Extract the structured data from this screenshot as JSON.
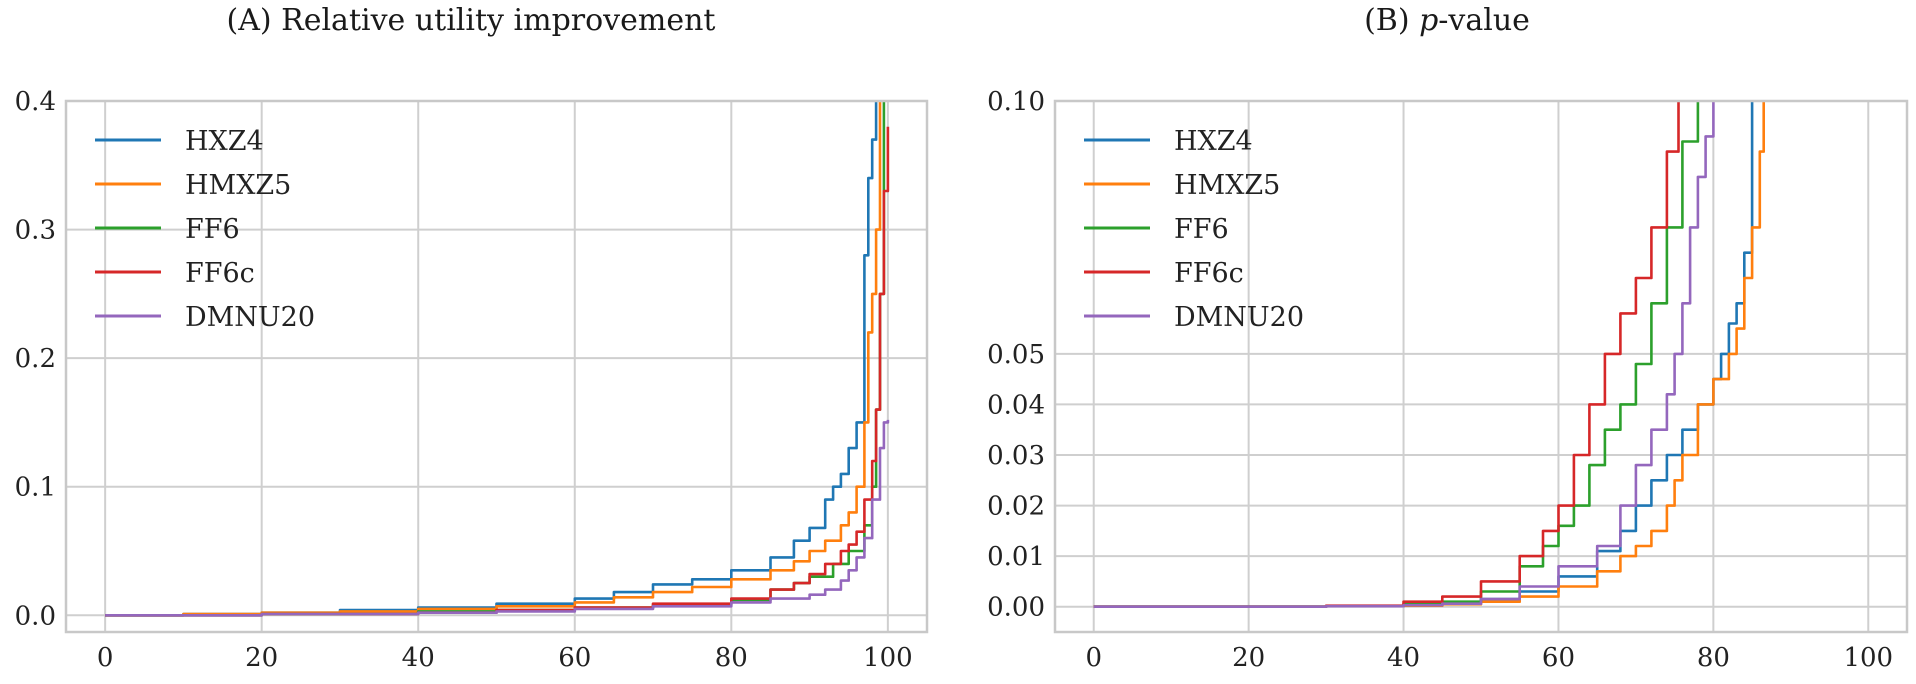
{
  "chart_data": [
    {
      "id": "A",
      "type": "line",
      "title": "(A) Relative utility improvement",
      "xlabel": "",
      "ylabel": "",
      "xlim": [
        -5,
        105
      ],
      "ylim": [
        -0.013,
        0.4
      ],
      "xticks": [
        0,
        20,
        40,
        60,
        80,
        100
      ],
      "yticks": [
        0.0,
        0.1,
        0.2,
        0.3,
        0.4
      ],
      "ytick_labels": [
        "0.0",
        "0.1",
        "0.2",
        "0.3",
        "0.4"
      ],
      "grid": true,
      "legend": "top-left",
      "series": [
        {
          "name": "HXZ4",
          "color": "#1f77b4",
          "points": [
            [
              0,
              0
            ],
            [
              10,
              0.001
            ],
            [
              20,
              0.002
            ],
            [
              30,
              0.004
            ],
            [
              40,
              0.006
            ],
            [
              50,
              0.009
            ],
            [
              60,
              0.013
            ],
            [
              65,
              0.018
            ],
            [
              70,
              0.024
            ],
            [
              75,
              0.028
            ],
            [
              80,
              0.035
            ],
            [
              85,
              0.045
            ],
            [
              88,
              0.058
            ],
            [
              90,
              0.068
            ],
            [
              92,
              0.09
            ],
            [
              93,
              0.1
            ],
            [
              94,
              0.11
            ],
            [
              95,
              0.13
            ],
            [
              96,
              0.15
            ],
            [
              97,
              0.28
            ],
            [
              97.5,
              0.34
            ],
            [
              98,
              0.37
            ],
            [
              98.5,
              0.4
            ]
          ]
        },
        {
          "name": "HMXZ5",
          "color": "#ff7f0e",
          "points": [
            [
              0,
              0
            ],
            [
              10,
              0.001
            ],
            [
              20,
              0.002
            ],
            [
              30,
              0.003
            ],
            [
              40,
              0.005
            ],
            [
              50,
              0.007
            ],
            [
              60,
              0.01
            ],
            [
              65,
              0.014
            ],
            [
              70,
              0.018
            ],
            [
              75,
              0.022
            ],
            [
              80,
              0.028
            ],
            [
              85,
              0.035
            ],
            [
              88,
              0.042
            ],
            [
              90,
              0.05
            ],
            [
              92,
              0.058
            ],
            [
              94,
              0.07
            ],
            [
              95,
              0.08
            ],
            [
              96,
              0.1
            ],
            [
              97,
              0.15
            ],
            [
              97.5,
              0.22
            ],
            [
              98,
              0.25
            ],
            [
              98.5,
              0.3
            ],
            [
              99,
              0.4
            ]
          ]
        },
        {
          "name": "FF6",
          "color": "#2ca02c",
          "points": [
            [
              0,
              0
            ],
            [
              20,
              0.001
            ],
            [
              40,
              0.003
            ],
            [
              50,
              0.004
            ],
            [
              60,
              0.006
            ],
            [
              70,
              0.008
            ],
            [
              80,
              0.012
            ],
            [
              85,
              0.02
            ],
            [
              88,
              0.025
            ],
            [
              90,
              0.03
            ],
            [
              93,
              0.04
            ],
            [
              95,
              0.05
            ],
            [
              97,
              0.07
            ],
            [
              98,
              0.1
            ],
            [
              98.5,
              0.16
            ],
            [
              99,
              0.25
            ],
            [
              99.5,
              0.4
            ]
          ]
        },
        {
          "name": "FF6c",
          "color": "#d62728",
          "points": [
            [
              0,
              0
            ],
            [
              20,
              0.001
            ],
            [
              40,
              0.002
            ],
            [
              50,
              0.004
            ],
            [
              60,
              0.006
            ],
            [
              70,
              0.009
            ],
            [
              80,
              0.013
            ],
            [
              85,
              0.02
            ],
            [
              88,
              0.025
            ],
            [
              90,
              0.032
            ],
            [
              92,
              0.04
            ],
            [
              94,
              0.05
            ],
            [
              95,
              0.055
            ],
            [
              96,
              0.065
            ],
            [
              97,
              0.09
            ],
            [
              98,
              0.12
            ],
            [
              98.5,
              0.16
            ],
            [
              99,
              0.25
            ],
            [
              99.5,
              0.33
            ],
            [
              100,
              0.38
            ]
          ]
        },
        {
          "name": "DMNU20",
          "color": "#9467bd",
          "points": [
            [
              0,
              0
            ],
            [
              20,
              0.001
            ],
            [
              40,
              0.002
            ],
            [
              50,
              0.003
            ],
            [
              60,
              0.005
            ],
            [
              70,
              0.007
            ],
            [
              80,
              0.01
            ],
            [
              85,
              0.013
            ],
            [
              90,
              0.016
            ],
            [
              92,
              0.02
            ],
            [
              94,
              0.027
            ],
            [
              95,
              0.035
            ],
            [
              96,
              0.045
            ],
            [
              97,
              0.06
            ],
            [
              98,
              0.09
            ],
            [
              99,
              0.13
            ],
            [
              99.5,
              0.15
            ],
            [
              100,
              0.152
            ]
          ]
        }
      ]
    },
    {
      "id": "B",
      "type": "line",
      "title_prefix": "(B) ",
      "title_italic": "p",
      "title_suffix": "-value",
      "xlabel": "",
      "ylabel": "",
      "xlim": [
        -5,
        105
      ],
      "ylim": [
        -0.005,
        0.1
      ],
      "xticks": [
        0,
        20,
        40,
        60,
        80,
        100
      ],
      "yticks": [
        0.0,
        0.01,
        0.02,
        0.03,
        0.04,
        0.05,
        0.1
      ],
      "ytick_labels": [
        "0.00",
        "0.01",
        "0.02",
        "0.03",
        "0.04",
        "0.05",
        "0.10"
      ],
      "grid": true,
      "legend": "top-left",
      "series": [
        {
          "name": "HXZ4",
          "color": "#1f77b4",
          "points": [
            [
              0,
              0
            ],
            [
              30,
              0.0001
            ],
            [
              40,
              0.0003
            ],
            [
              45,
              0.0008
            ],
            [
              50,
              0.0015
            ],
            [
              55,
              0.003
            ],
            [
              60,
              0.006
            ],
            [
              65,
              0.011
            ],
            [
              68,
              0.015
            ],
            [
              70,
              0.02
            ],
            [
              72,
              0.025
            ],
            [
              74,
              0.03
            ],
            [
              76,
              0.035
            ],
            [
              78,
              0.04
            ],
            [
              80,
              0.045
            ],
            [
              81,
              0.05
            ],
            [
              82,
              0.056
            ],
            [
              83,
              0.06
            ],
            [
              84,
              0.07
            ],
            [
              85,
              0.1
            ]
          ]
        },
        {
          "name": "HMXZ5",
          "color": "#ff7f0e",
          "points": [
            [
              0,
              0
            ],
            [
              30,
              0.0001
            ],
            [
              40,
              0.0002
            ],
            [
              45,
              0.0005
            ],
            [
              50,
              0.001
            ],
            [
              55,
              0.002
            ],
            [
              60,
              0.004
            ],
            [
              65,
              0.007
            ],
            [
              68,
              0.01
            ],
            [
              70,
              0.012
            ],
            [
              72,
              0.015
            ],
            [
              74,
              0.02
            ],
            [
              75,
              0.025
            ],
            [
              76,
              0.03
            ],
            [
              78,
              0.04
            ],
            [
              80,
              0.045
            ],
            [
              82,
              0.05
            ],
            [
              83,
              0.055
            ],
            [
              84,
              0.065
            ],
            [
              85,
              0.075
            ],
            [
              86,
              0.09
            ],
            [
              86.5,
              0.1
            ]
          ]
        },
        {
          "name": "FF6",
          "color": "#2ca02c",
          "points": [
            [
              0,
              0
            ],
            [
              30,
              0.0001
            ],
            [
              40,
              0.0005
            ],
            [
              45,
              0.001
            ],
            [
              50,
              0.003
            ],
            [
              55,
              0.008
            ],
            [
              58,
              0.012
            ],
            [
              60,
              0.016
            ],
            [
              62,
              0.02
            ],
            [
              64,
              0.028
            ],
            [
              66,
              0.035
            ],
            [
              68,
              0.04
            ],
            [
              70,
              0.048
            ],
            [
              72,
              0.06
            ],
            [
              74,
              0.075
            ],
            [
              76,
              0.092
            ],
            [
              78,
              0.1
            ]
          ]
        },
        {
          "name": "FF6c",
          "color": "#d62728",
          "points": [
            [
              0,
              0
            ],
            [
              30,
              0.0002
            ],
            [
              40,
              0.001
            ],
            [
              45,
              0.002
            ],
            [
              50,
              0.005
            ],
            [
              55,
              0.01
            ],
            [
              58,
              0.015
            ],
            [
              60,
              0.02
            ],
            [
              62,
              0.03
            ],
            [
              64,
              0.04
            ],
            [
              66,
              0.05
            ],
            [
              68,
              0.058
            ],
            [
              70,
              0.065
            ],
            [
              72,
              0.075
            ],
            [
              74,
              0.09
            ],
            [
              75.5,
              0.1
            ]
          ]
        },
        {
          "name": "DMNU20",
          "color": "#9467bd",
          "points": [
            [
              0,
              0
            ],
            [
              30,
              0.0001
            ],
            [
              40,
              0.0003
            ],
            [
              45,
              0.0006
            ],
            [
              50,
              0.0015
            ],
            [
              55,
              0.004
            ],
            [
              60,
              0.008
            ],
            [
              65,
              0.012
            ],
            [
              68,
              0.02
            ],
            [
              70,
              0.028
            ],
            [
              72,
              0.035
            ],
            [
              74,
              0.042
            ],
            [
              75,
              0.05
            ],
            [
              76,
              0.06
            ],
            [
              77,
              0.075
            ],
            [
              78,
              0.085
            ],
            [
              79,
              0.093
            ],
            [
              80,
              0.1
            ]
          ]
        }
      ]
    }
  ]
}
